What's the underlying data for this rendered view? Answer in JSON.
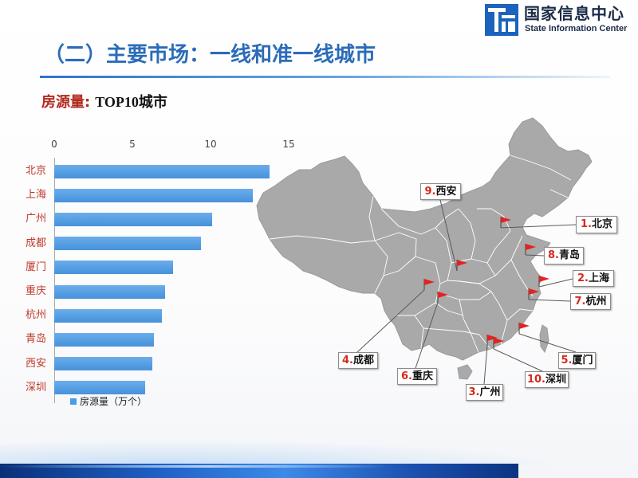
{
  "header": {
    "logo": {
      "icon": "state-information-center-logo",
      "name_cn": "国家信息中心",
      "name_en": "State Information Center"
    },
    "title": "（二）主要市场：一线和准一线城市"
  },
  "chart_data": {
    "type": "bar",
    "orientation": "horizontal",
    "title_prefix": "房源量:",
    "title": "TOP10城市",
    "categories": [
      "北京",
      "上海",
      "广州",
      "成都",
      "厦门",
      "重庆",
      "杭州",
      "青岛",
      "西安",
      "深圳"
    ],
    "series": [
      {
        "name": "房源量（万个）",
        "values": [
          13.8,
          12.7,
          10.1,
          9.4,
          7.6,
          7.1,
          6.9,
          6.4,
          6.3,
          5.8
        ]
      }
    ],
    "xlim": [
      0,
      15
    ],
    "xticks": [
      0,
      5,
      10,
      15
    ],
    "grid": false,
    "legend": "bottom-left"
  },
  "map": {
    "icon": "china-map",
    "marker_icon": "flag-icon",
    "markers": [
      {
        "rank": "1.",
        "city": "北京"
      },
      {
        "rank": "2.",
        "city": "上海"
      },
      {
        "rank": "3.",
        "city": "广州"
      },
      {
        "rank": "4.",
        "city": "成都"
      },
      {
        "rank": "5.",
        "city": "厦门"
      },
      {
        "rank": "6.",
        "city": "重庆"
      },
      {
        "rank": "7.",
        "city": "杭州"
      },
      {
        "rank": "8.",
        "city": "青岛"
      },
      {
        "rank": "9.",
        "city": "西安"
      },
      {
        "rank": "10.",
        "city": "深圳"
      }
    ]
  },
  "colors": {
    "title": "#2b6cb8",
    "bar": "#4a9be8",
    "category_label": "#c0392b",
    "subtitle_prefix": "#b22a1e",
    "rank_text": "#d42a1e",
    "flag": "#e32222",
    "map_fill": "#a9a9a9"
  }
}
